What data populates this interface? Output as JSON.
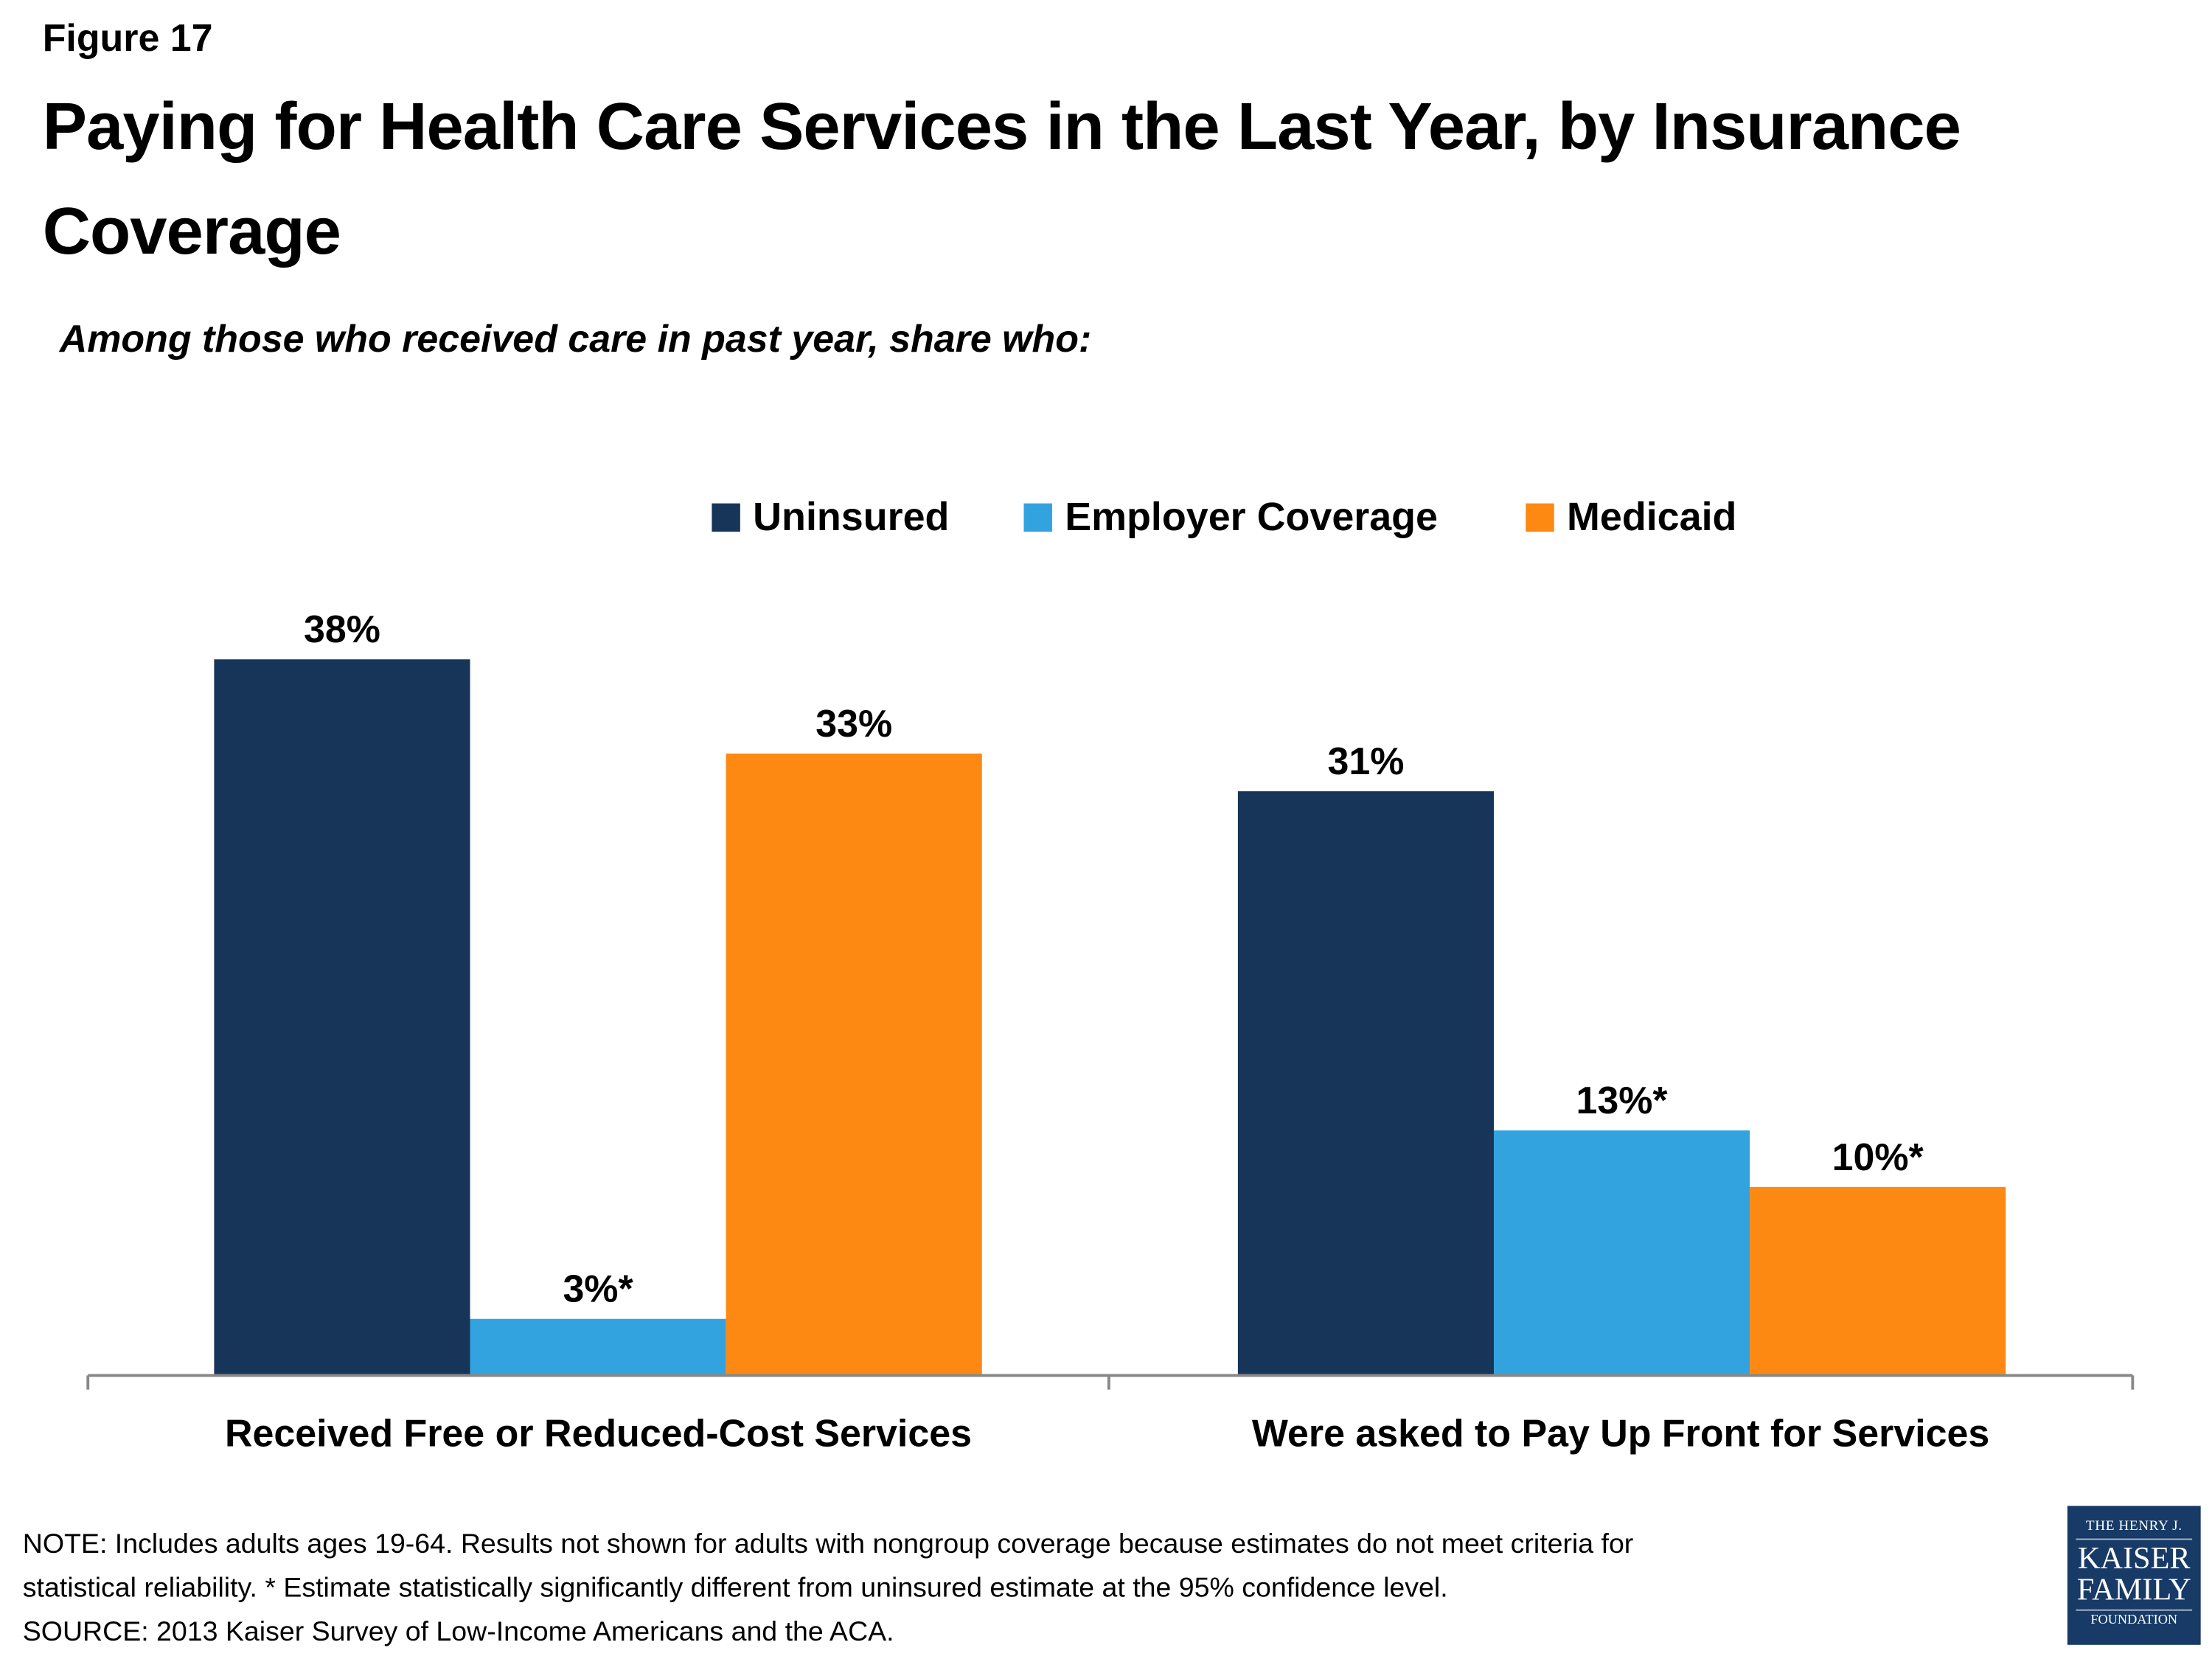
{
  "figure_label": "Figure 17",
  "logo_text": "THE HENRY J. KAISER FAMILY FOUNDATION",
  "note_lines": [
    "NOTE: Includes adults ages 19-64. Results not shown for adults with nongroup coverage because estimates do not meet criteria for",
    "statistical reliability. * Estimate statistically significantly different from uninsured estimate  at the 95% confidence level.",
    "SOURCE: 2013 Kaiser Survey of Low-Income Americans and the ACA."
  ],
  "chart_data": {
    "type": "bar",
    "title": "Paying for Health Care Services in the Last Year, by Insurance Coverage",
    "subtitle": "Among those who received care in past year, share who:",
    "categories": [
      "Received Free or Reduced-Cost Services",
      "Were asked to Pay Up Front for Services"
    ],
    "series": [
      {
        "name": "Uninsured",
        "color": "#163559",
        "values": [
          38,
          31
        ],
        "labels": [
          "38%",
          "31%"
        ]
      },
      {
        "name": "Employer Coverage",
        "color": "#33a3e0",
        "values": [
          3,
          13
        ],
        "labels": [
          "3%*",
          "13%*"
        ]
      },
      {
        "name": "Medicaid",
        "color": "#fd8812",
        "values": [
          33,
          10
        ],
        "labels": [
          "33%",
          "10%*"
        ]
      }
    ],
    "ylim": [
      0,
      38
    ],
    "grid": false,
    "legend": "top-center",
    "xlabel": "",
    "ylabel": ""
  }
}
